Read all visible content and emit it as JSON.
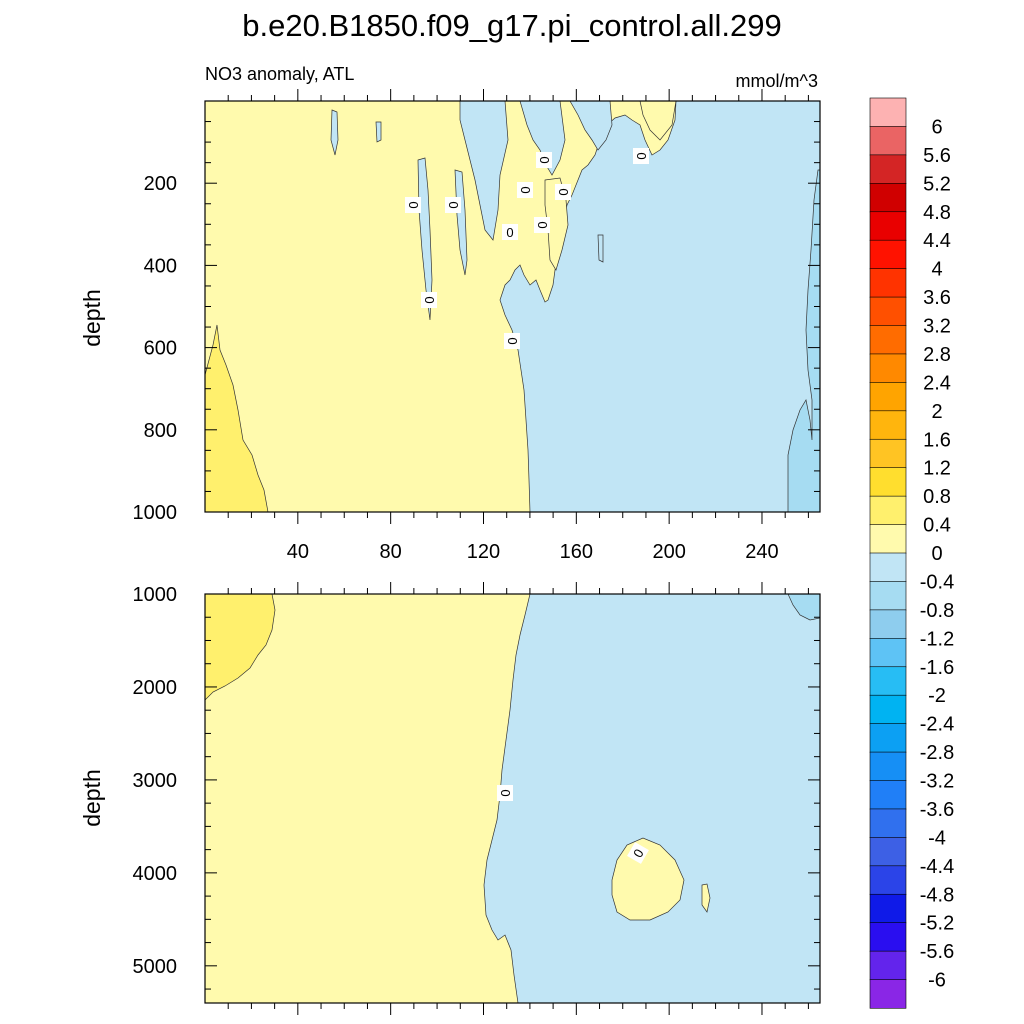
{
  "title": "b.e20.B1850.f09_g17.pi_control.all.299",
  "chart_data": {
    "type": "heatmap",
    "left_label": "NO3 anomaly, ATL",
    "right_label": "mmol/m^3",
    "colorbar": {
      "labels": [
        "6",
        "5.6",
        "5.2",
        "4.8",
        "4.4",
        "4",
        "3.6",
        "3.2",
        "2.8",
        "2.4",
        "2",
        "1.6",
        "1.2",
        "0.8",
        "0.4",
        "0",
        "-0.4",
        "-0.8",
        "-1.2",
        "-1.6",
        "-2",
        "-2.4",
        "-2.8",
        "-3.2",
        "-3.6",
        "-4",
        "-4.4",
        "-4.8",
        "-5.2",
        "-5.6",
        "-6"
      ],
      "colors": [
        "#fdb2b2",
        "#ea6464",
        "#d42525",
        "#d00000",
        "#e90000",
        "#ff1200",
        "#ff3300",
        "#ff5000",
        "#ff6c00",
        "#ff8900",
        "#ffa400",
        "#ffb50d",
        "#ffc423",
        "#ffde2e",
        "#fff06d",
        "#fffaad",
        "#c1e5f5",
        "#a6dcf2",
        "#8ecdee",
        "#5ec3f5",
        "#27bdf4",
        "#00b3f2",
        "#0ca0f3",
        "#168ff5",
        "#207ff7",
        "#3070ee",
        "#3d60e5",
        "#2b44e8",
        "#0f1ae8",
        "#2a0ef0",
        "#6324ec",
        "#8a26e6"
      ]
    },
    "panels": [
      {
        "name": "upper",
        "ylabel": "depth",
        "ylim": [
          0,
          1000
        ],
        "yticks": [
          200,
          400,
          600,
          800,
          1000
        ],
        "xlim": [
          0,
          265
        ],
        "xticks": [
          40,
          80,
          120,
          160,
          200,
          240
        ],
        "contour_labels": [
          "0",
          "0",
          "0",
          "0",
          "0",
          "0",
          "0",
          "0",
          "0",
          "0"
        ]
      },
      {
        "name": "lower",
        "ylabel": "depth",
        "ylim": [
          1000,
          5400
        ],
        "yticks": [
          1000,
          2000,
          3000,
          4000,
          5000
        ],
        "xlim": [
          0,
          265
        ],
        "contour_labels": [
          "0",
          "0"
        ]
      }
    ]
  }
}
